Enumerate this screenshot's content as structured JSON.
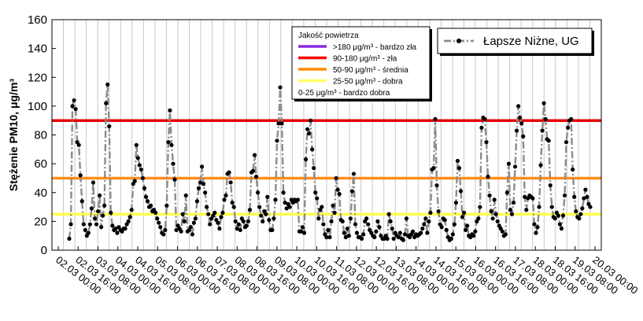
{
  "chart_data": {
    "type": "line",
    "ylabel": "Stężenie PM10, μg/m³",
    "xlabel": "",
    "ylim": [
      0,
      160
    ],
    "yticks": [
      0,
      20,
      40,
      60,
      80,
      100,
      120,
      140,
      160
    ],
    "xticks": [
      "02.03 00:00",
      "02.03 16:00",
      "03.03 08:00",
      "04.03 00:00",
      "04.03 16:00",
      "05.03 08:00",
      "06.03 00:00",
      "06.03 16:00",
      "07.03 08:00",
      "08.03 00:00",
      "08.03 16:00",
      "09.03 08:00",
      "10.03 00:00",
      "10.03 16:00",
      "11.03 08:00",
      "12.03 00:00",
      "12.03 16:00",
      "13.03 08:00",
      "14.03 00:00",
      "14.03 16:00",
      "15.03 08:00",
      "16.03 00:00",
      "16.03 16:00",
      "17.03 08:00",
      "18.03 00:00",
      "18.03 16:00",
      "19.03 08:00",
      "20.03 00:00"
    ],
    "grid": "vertical",
    "series": [
      {
        "name": "Łapsze Niżne, UG",
        "color": "#8c8c8c",
        "marker_color": "#000000",
        "values": [
          8,
          18,
          100,
          104,
          98,
          75,
          73,
          52,
          34,
          18,
          14,
          10,
          12,
          18,
          29,
          47,
          22,
          18,
          27,
          38,
          16,
          24,
          31,
          102,
          115,
          86,
          26,
          17,
          14,
          15,
          12,
          16,
          14,
          13,
          15,
          15,
          18,
          20,
          23,
          28,
          46,
          48,
          73,
          64,
          59,
          56,
          50,
          43,
          37,
          34,
          30,
          31,
          27,
          28,
          26,
          22,
          19,
          16,
          12,
          11,
          14,
          31,
          75,
          97,
          73,
          60,
          49,
          14,
          17,
          15,
          13,
          25,
          20,
          38,
          13,
          14,
          16,
          11,
          19,
          22,
          34,
          43,
          47,
          58,
          46,
          40,
          30,
          25,
          18,
          22,
          24,
          26,
          21,
          19,
          15,
          23,
          26,
          35,
          38,
          53,
          54,
          47,
          33,
          30,
          20,
          15,
          18,
          14,
          22,
          20,
          16,
          17,
          20,
          28,
          54,
          55,
          66,
          51,
          40,
          30,
          24,
          20,
          27,
          25,
          37,
          21,
          14,
          14,
          22,
          35,
          76,
          88,
          113,
          88,
          40,
          33,
          29,
          32,
          30,
          35,
          33,
          35,
          34,
          35,
          13,
          13,
          16,
          12,
          63,
          84,
          81,
          90,
          70,
          57,
          40,
          36,
          22,
          28,
          30,
          18,
          11,
          9,
          14,
          9,
          20,
          31,
          26,
          50,
          42,
          39,
          21,
          20,
          12,
          9,
          15,
          10,
          22,
          41,
          53,
          18,
          12,
          9,
          9,
          8,
          11,
          20,
          22,
          18,
          14,
          12,
          10,
          9,
          13,
          20,
          16,
          10,
          8,
          8,
          10,
          8,
          25,
          20,
          15,
          8,
          12,
          10,
          9,
          12,
          8,
          7,
          11,
          22,
          10,
          9,
          11,
          13,
          9,
          11,
          10,
          11,
          12,
          15,
          18,
          22,
          12,
          20,
          26,
          56,
          57,
          91,
          45,
          27,
          18,
          16,
          22,
          21,
          14,
          9,
          7,
          8,
          11,
          18,
          33,
          62,
          57,
          41,
          23,
          26,
          14,
          17,
          10,
          9,
          11,
          10,
          13,
          20,
          22,
          30,
          85,
          92,
          91,
          75,
          51,
          38,
          27,
          22,
          35,
          25,
          20,
          17,
          15,
          13,
          10,
          11,
          40,
          60,
          28,
          25,
          33,
          58,
          83,
          100,
          92,
          88,
          79,
          37,
          28,
          36,
          38,
          37,
          36,
          18,
          12,
          16,
          30,
          59,
          83,
          102,
          91,
          77,
          76,
          45,
          30,
          23,
          22,
          26,
          24,
          18,
          15,
          24,
          38,
          75,
          85,
          90,
          91,
          56,
          37,
          27,
          23,
          22,
          25,
          29,
          36,
          42,
          37,
          32,
          30
        ]
      }
    ],
    "legend_series": {
      "label": "Łapsze Niżne, UG",
      "placement": "top-right"
    },
    "quality_legend": {
      "title": "Jakość powietrza",
      "placement": "top-center",
      "items": [
        {
          "color": "#8a2be2",
          "label": ">180 μg/m³ - bardzo zła"
        },
        {
          "color": "#ff0000",
          "label": "90-180 μg/m³ - zła"
        },
        {
          "color": "#ff8c00",
          "label": "50-90 μg/m³ - średnia"
        },
        {
          "color": "#ffff66",
          "label": "25-50 μg/m³ - dobra"
        },
        {
          "color": "",
          "label": "0-25 μg/m³ - bardzo dobra"
        }
      ]
    },
    "thresholds": [
      {
        "value": 90,
        "color": "#e60000"
      },
      {
        "value": 50,
        "color": "#ff8c1a"
      },
      {
        "value": 25,
        "color": "#ffff4d"
      }
    ]
  }
}
